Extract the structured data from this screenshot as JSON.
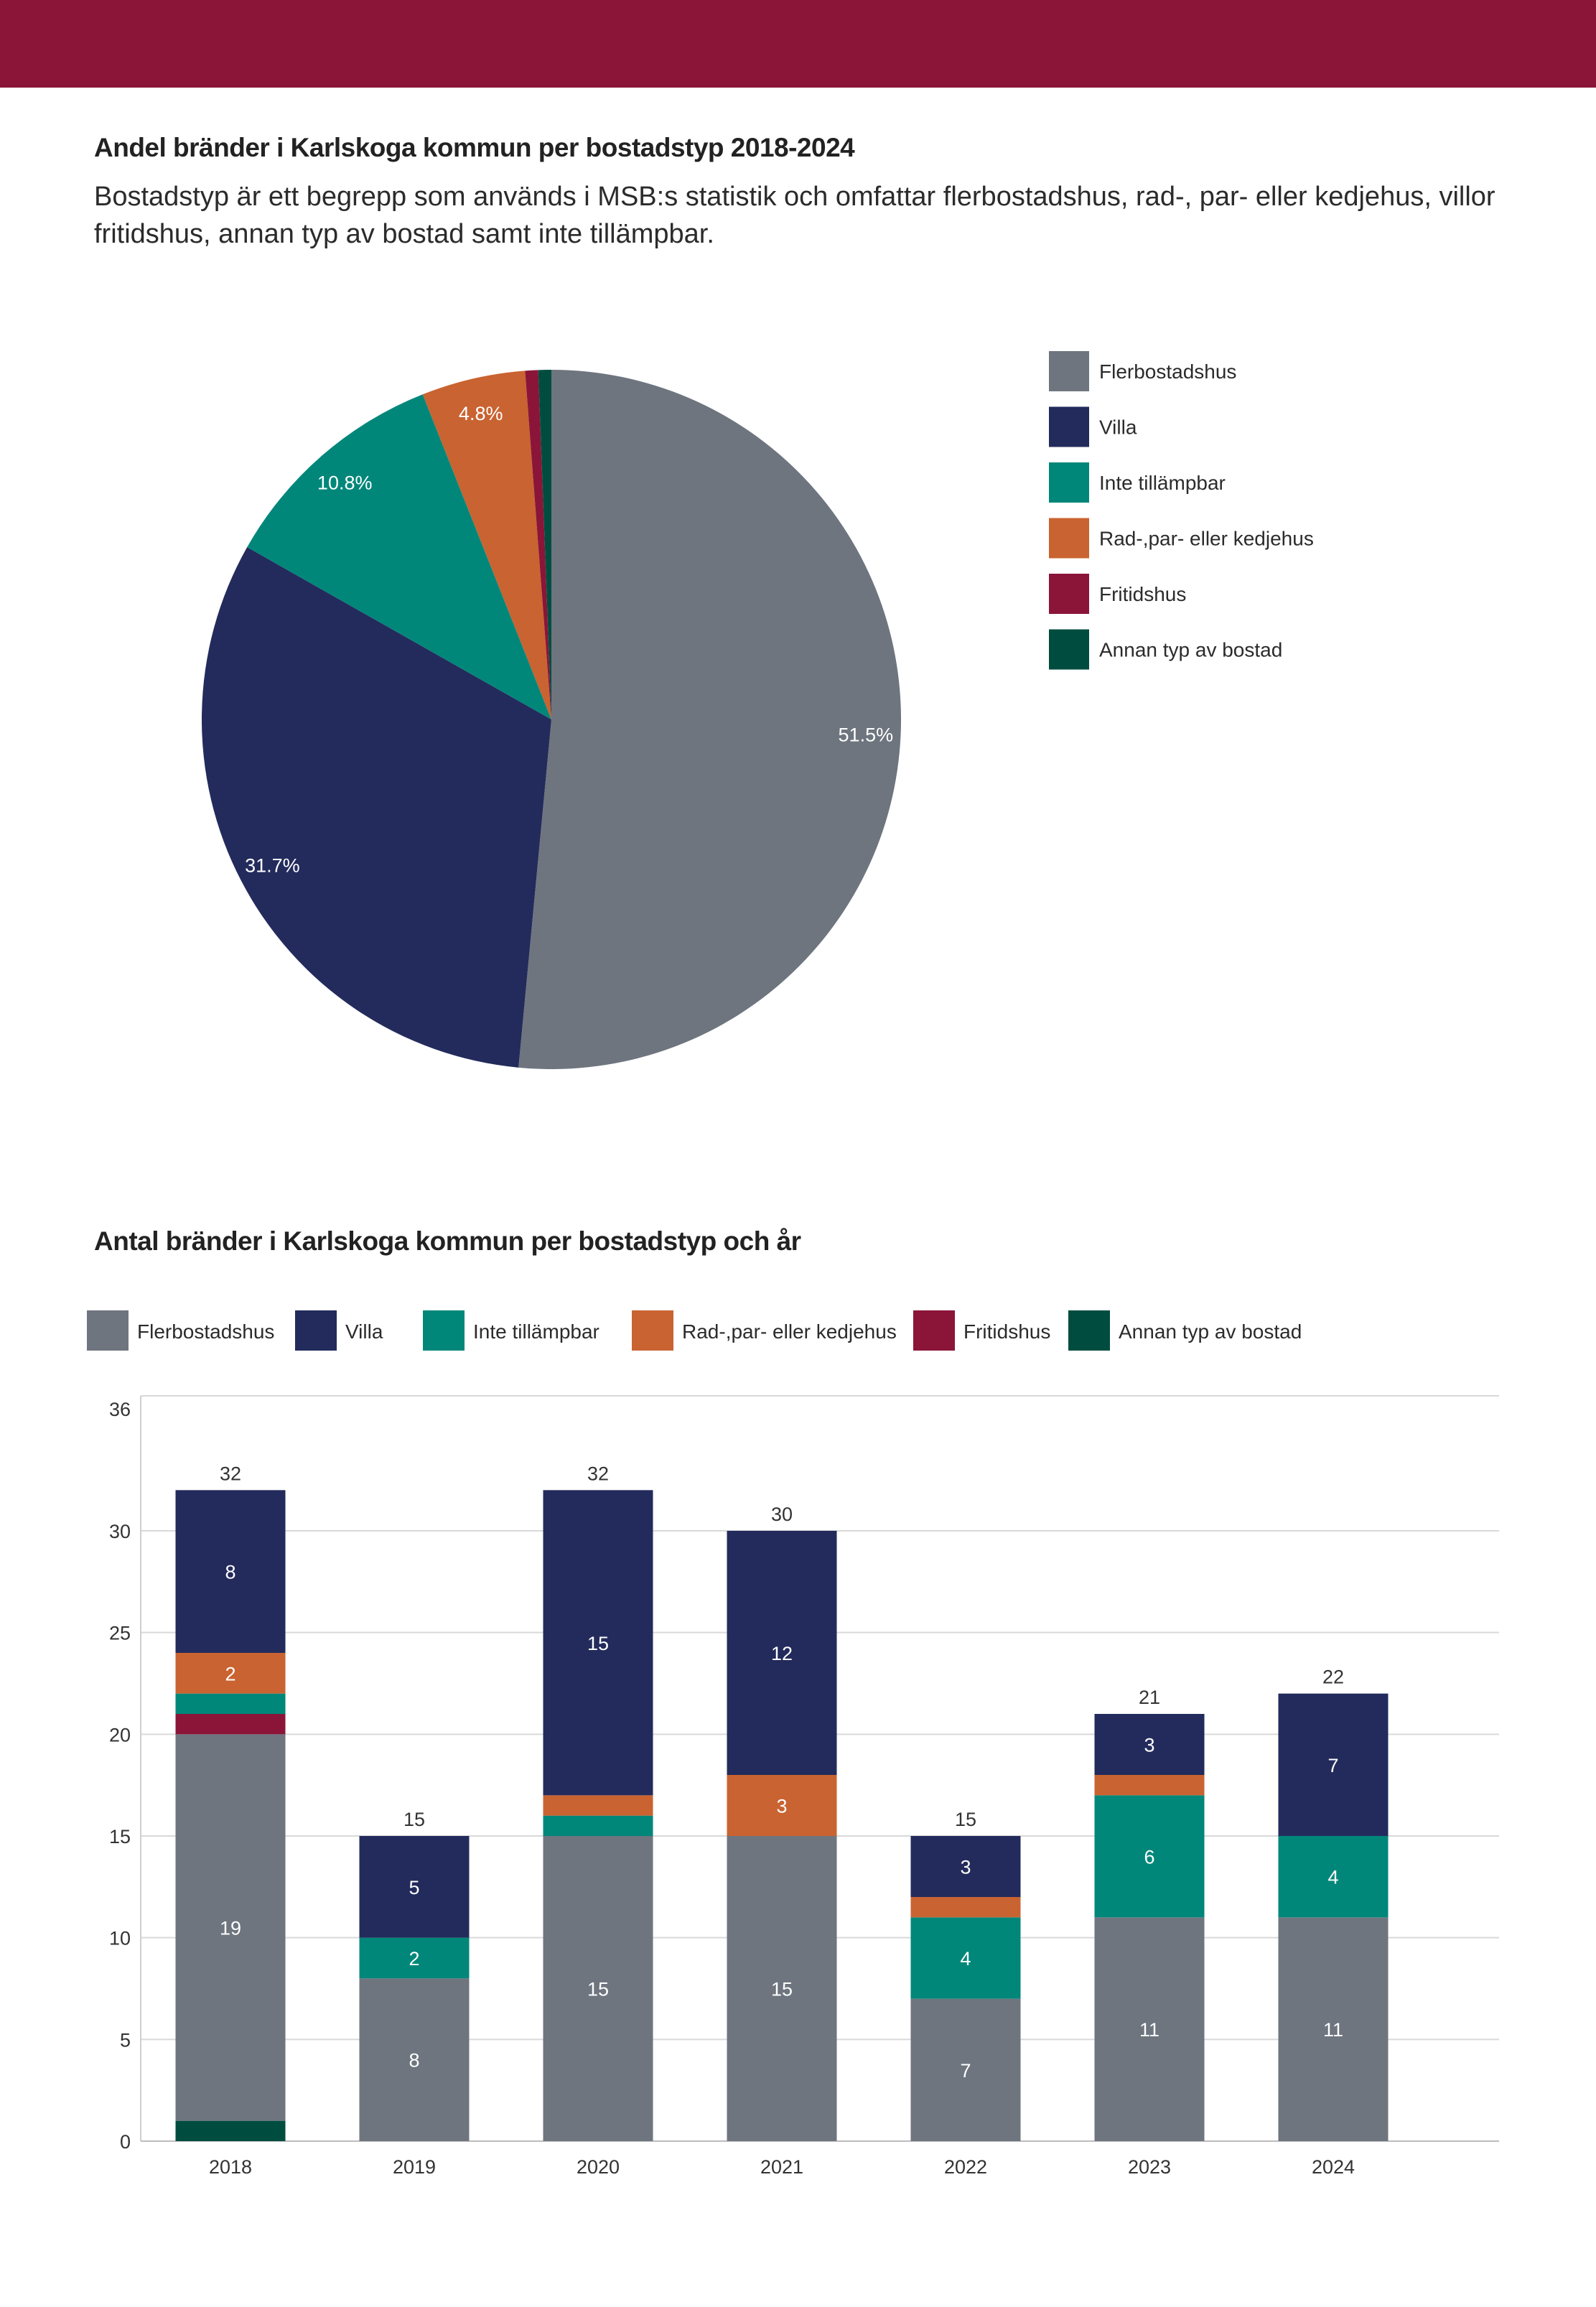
{
  "header": {
    "band_color": "#8b1538"
  },
  "pie_section": {
    "title": "Andel bränder i Karlskoga kommun per bostadstyp 2018-2024",
    "description": "Bostadstyp är ett begrepp som används i MSB:s statistik och omfattar flerbostadshus, rad-, par- eller kedjehus, villor fritidshus, annan typ av bostad samt inte tillämpbar."
  },
  "bar_section": {
    "title": "Antal bränder i Karlskoga kommun per bostadstyp och år"
  },
  "chart_data": [
    {
      "type": "pie",
      "title": "Andel bränder i Karlskoga kommun per bostadstyp 2018-2024",
      "legend_position": "right",
      "slices": [
        {
          "name": "Flerbostadshus",
          "value": 51.5,
          "label": "51.5%",
          "color": "#6e757f"
        },
        {
          "name": "Villa",
          "value": 31.7,
          "label": "31.7%",
          "color": "#232b5c"
        },
        {
          "name": "Inte tillämpbar",
          "value": 10.8,
          "label": "10.8%",
          "color": "#00877a"
        },
        {
          "name": "Rad-,par- eller kedjehus",
          "value": 4.8,
          "label": "4.8%",
          "color": "#c96331"
        },
        {
          "name": "Fritidshus",
          "value": 0.6,
          "label": "",
          "color": "#8b1538"
        },
        {
          "name": "Annan typ av bostad",
          "value": 0.6,
          "label": "",
          "color": "#004d40"
        }
      ]
    },
    {
      "type": "bar",
      "stacked": true,
      "title": "Antal bränder i Karlskoga kommun per bostadstyp och år",
      "legend_position": "top",
      "categories": [
        "2018",
        "2019",
        "2020",
        "2021",
        "2022",
        "2023",
        "2024"
      ],
      "ylim": [
        0,
        36
      ],
      "yticks": [
        0,
        5,
        10,
        15,
        20,
        25,
        30,
        36
      ],
      "grid": true,
      "totals": [
        32,
        15,
        32,
        30,
        15,
        21,
        22
      ],
      "series": [
        {
          "name": "Annan typ av bostad",
          "color": "#004d40",
          "values": [
            1,
            0,
            0,
            0,
            0,
            0,
            0
          ],
          "labels": [
            "",
            "",
            "",
            "",
            "",
            "",
            ""
          ]
        },
        {
          "name": "Flerbostadshus",
          "color": "#6e757f",
          "values": [
            19,
            8,
            15,
            15,
            7,
            11,
            11
          ],
          "labels": [
            "19",
            "8",
            "15",
            "15",
            "7",
            "11",
            "11"
          ]
        },
        {
          "name": "Fritidshus",
          "color": "#8b1538",
          "values": [
            1,
            0,
            0,
            0,
            0,
            0,
            0
          ],
          "labels": [
            "",
            "",
            "",
            "",
            "",
            "",
            ""
          ]
        },
        {
          "name": "Inte tillämpbar",
          "color": "#00877a",
          "values": [
            1,
            2,
            1,
            0,
            4,
            6,
            4
          ],
          "labels": [
            "",
            "2",
            "",
            "",
            "4",
            "6",
            "4"
          ]
        },
        {
          "name": "Rad-,par- eller kedjehus",
          "color": "#c96331",
          "values": [
            2,
            0,
            1,
            3,
            1,
            1,
            0
          ],
          "labels": [
            "2",
            "",
            "",
            "3",
            "",
            "",
            ""
          ]
        },
        {
          "name": "Villa",
          "color": "#232b5c",
          "values": [
            8,
            5,
            15,
            12,
            3,
            3,
            7
          ],
          "labels": [
            "8",
            "5",
            "15",
            "12",
            "3",
            "3",
            "7"
          ]
        }
      ],
      "legend_order": [
        "Flerbostadshus",
        "Villa",
        "Inte tillämpbar",
        "Rad-,par- eller kedjehus",
        "Fritidshus",
        "Annan typ av bostad"
      ]
    }
  ]
}
